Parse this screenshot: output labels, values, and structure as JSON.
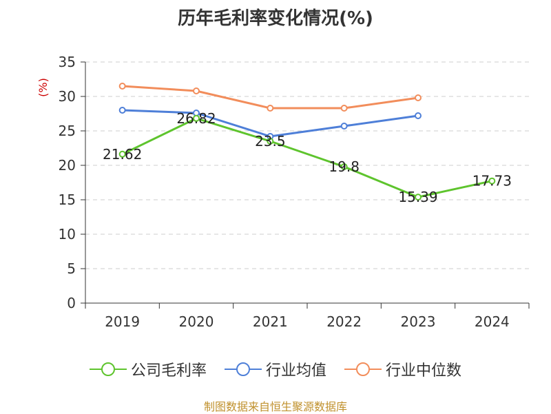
{
  "title": "历年毛利率变化情况(%)",
  "source_note": "制图数据来自恒生聚源数据库",
  "chart_data": {
    "type": "line",
    "title": "历年毛利率变化情况(%)",
    "ylabel": "(%)",
    "ylim": [
      0,
      35
    ],
    "yticks": [
      0,
      5,
      10,
      15,
      20,
      25,
      30,
      35
    ],
    "grid": true,
    "legend_position": "bottom",
    "categories": [
      "2019",
      "2020",
      "2021",
      "2022",
      "2023",
      "2024"
    ],
    "series": [
      {
        "name": "公司毛利率",
        "color": "#5ec42d",
        "values": [
          21.62,
          26.82,
          23.5,
          19.8,
          15.39,
          17.73
        ],
        "labels": [
          "21.62",
          "26.82",
          "23.5",
          "19.8",
          "15.39",
          "17.73"
        ]
      },
      {
        "name": "行业均值",
        "color": "#4e7fd8",
        "values": [
          28.0,
          27.6,
          24.2,
          25.7,
          27.2,
          null
        ]
      },
      {
        "name": "行业中位数",
        "color": "#f28d5b",
        "values": [
          31.5,
          30.8,
          28.3,
          28.3,
          29.8,
          null
        ]
      }
    ]
  }
}
